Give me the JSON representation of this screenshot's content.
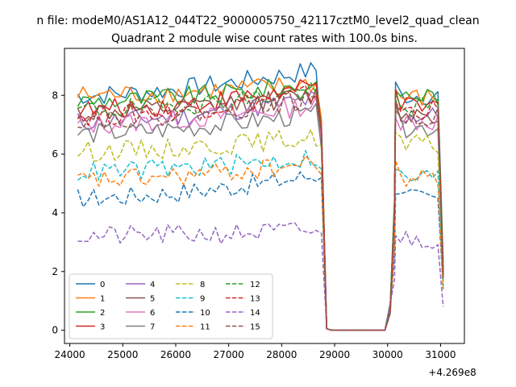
{
  "chart_data": {
    "type": "line",
    "suptitle": "n file: modeM0/AS1A12_044T22_9000005750_42117cztM0_level2_quad_clean",
    "title": "Quadrant 2 module wise count rates with 100.0s bins.",
    "xlabel": "",
    "ylabel": "",
    "x_offset_label": "+4.269e8",
    "xlim": [
      23900,
      31450
    ],
    "ylim": [
      -0.45,
      9.6
    ],
    "xticks": [
      24000,
      25000,
      26000,
      27000,
      28000,
      29000,
      30000,
      31000
    ],
    "xtick_labels": [
      "24000",
      "25000",
      "26000",
      "27000",
      "28000",
      "29000",
      "30000",
      "31000"
    ],
    "yticks": [
      0,
      2,
      4,
      6,
      8
    ],
    "ytick_labels": [
      "0",
      "2",
      "4",
      "6",
      "8"
    ],
    "grid": false,
    "legend_position": "lower-left",
    "x": {
      "seg1_start": 24150,
      "seg1_end": 28750,
      "gap_low": 28850,
      "gap_high": 29950,
      "seg2_start": 30150,
      "seg2_end": 31050,
      "step": 100
    },
    "series": [
      {
        "name": "0",
        "color": "#1f77b4",
        "dash": "solid",
        "base": 8.0,
        "end_level": 8.9,
        "tail": 6.5,
        "seg2": 8.0,
        "last": 2.3
      },
      {
        "name": "1",
        "color": "#ff7f0e",
        "dash": "solid",
        "base": 8.0,
        "end_level": 8.4,
        "tail": 7.2,
        "seg2": 7.9,
        "last": 2.1
      },
      {
        "name": "2",
        "color": "#2ca02c",
        "dash": "solid",
        "base": 7.8,
        "end_level": 8.4,
        "tail": 6.9,
        "seg2": 8.0,
        "last": 2.0
      },
      {
        "name": "3",
        "color": "#d62728",
        "dash": "solid",
        "base": 7.5,
        "end_level": 8.3,
        "tail": 6.9,
        "seg2": 7.6,
        "last": 1.9
      },
      {
        "name": "4",
        "color": "#9467bd",
        "dash": "solid",
        "base": 7.1,
        "end_level": 7.9,
        "tail": 6.6,
        "seg2": 7.3,
        "last": 1.8
      },
      {
        "name": "5",
        "color": "#8c564b",
        "dash": "solid",
        "base": 7.4,
        "end_level": 8.0,
        "tail": 6.8,
        "seg2": 7.4,
        "last": 1.8
      },
      {
        "name": "6",
        "color": "#e377c2",
        "dash": "solid",
        "base": 7.0,
        "end_level": 7.7,
        "tail": 6.4,
        "seg2": 7.1,
        "last": 1.7
      },
      {
        "name": "7",
        "color": "#7f7f7f",
        "dash": "solid",
        "base": 6.7,
        "end_level": 7.4,
        "tail": 6.2,
        "seg2": 6.9,
        "last": 1.7
      },
      {
        "name": "8",
        "color": "#bcbd22",
        "dash": "dashed",
        "base": 6.1,
        "end_level": 6.6,
        "tail": 6.3,
        "seg2": 6.3,
        "last": 1.6
      },
      {
        "name": "9",
        "color": "#17becf",
        "dash": "dashed",
        "base": 5.4,
        "end_level": 5.9,
        "tail": 5.5,
        "seg2": 5.2,
        "last": 1.5
      },
      {
        "name": "10",
        "color": "#1f77b4",
        "dash": "dashed",
        "base": 4.5,
        "end_level": 5.3,
        "tail": 5.2,
        "seg2": 4.5,
        "last": 1.4
      },
      {
        "name": "11",
        "color": "#ff7f0e",
        "dash": "dashed",
        "base": 5.1,
        "end_level": 5.7,
        "tail": 5.3,
        "seg2": 5.2,
        "last": 1.4
      },
      {
        "name": "12",
        "color": "#2ca02c",
        "dash": "dashed",
        "base": 7.5,
        "end_level": 8.2,
        "tail": 6.9,
        "seg2": 7.6,
        "last": 1.9
      },
      {
        "name": "13",
        "color": "#d62728",
        "dash": "dashed",
        "base": 7.3,
        "end_level": 8.1,
        "tail": 6.8,
        "seg2": 7.5,
        "last": 1.9
      },
      {
        "name": "14",
        "color": "#9467bd",
        "dash": "dashed",
        "base": 3.2,
        "end_level": 3.4,
        "tail": 3.3,
        "seg2": 3.1,
        "last": 0.8
      },
      {
        "name": "15",
        "color": "#8c564b",
        "dash": "dashed",
        "base": 7.2,
        "end_level": 7.9,
        "tail": 6.7,
        "seg2": 7.3,
        "last": 1.8
      }
    ]
  }
}
